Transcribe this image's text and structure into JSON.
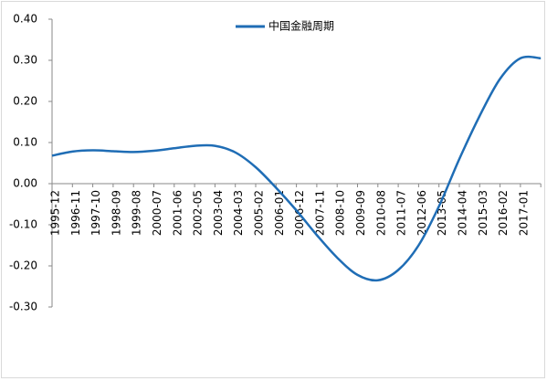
{
  "chart_data": {
    "type": "line",
    "categories": [
      "1995-12",
      "1996-11",
      "1997-10",
      "1998-09",
      "1999-08",
      "2000-07",
      "2001-06",
      "2002-05",
      "2003-04",
      "2004-03",
      "2005-02",
      "2006-01",
      "2006-12",
      "2007-11",
      "2008-10",
      "2009-09",
      "2010-08",
      "2011-07",
      "2012-06",
      "2013-05",
      "2014-04",
      "2015-03",
      "2016-02",
      "2017-01",
      null
    ],
    "series": [
      {
        "name": "中国金融周期",
        "color": "#1f6db5",
        "values": [
          0.068,
          0.078,
          0.081,
          0.079,
          0.077,
          0.08,
          0.086,
          0.092,
          0.092,
          0.076,
          0.04,
          -0.01,
          -0.065,
          -0.125,
          -0.18,
          -0.222,
          -0.235,
          -0.21,
          -0.15,
          -0.055,
          0.06,
          0.165,
          0.255,
          0.305,
          0.305
        ]
      }
    ],
    "ylim": [
      -0.3,
      0.4
    ],
    "yticks": [
      {
        "value": 0.4,
        "label": "0.40"
      },
      {
        "value": 0.3,
        "label": "0.30"
      },
      {
        "value": 0.2,
        "label": "0.20"
      },
      {
        "value": 0.1,
        "label": "0.10"
      },
      {
        "value": 0,
        "label": "0.00"
      },
      {
        "value": -0.1,
        "label": "-0.10"
      },
      {
        "value": -0.2,
        "label": "-0.20"
      },
      {
        "value": -0.3,
        "label": "-0.30"
      }
    ],
    "legend": "top"
  }
}
